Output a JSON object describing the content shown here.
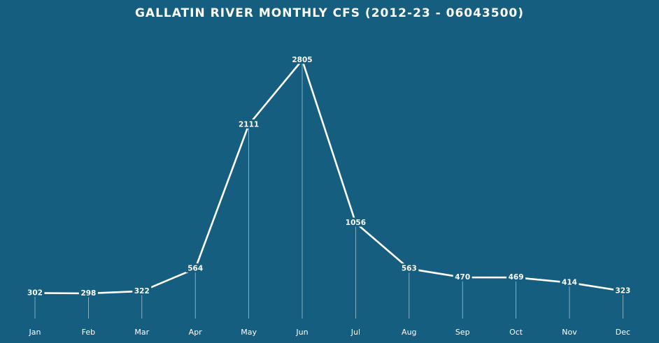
{
  "chart_data": {
    "type": "line",
    "title": "GALLATIN RIVER MONTHLY CFS (2012-23 - 06043500)",
    "categories": [
      "Jan",
      "Feb",
      "Mar",
      "Apr",
      "May",
      "Jun",
      "Jul",
      "Aug",
      "Sep",
      "Oct",
      "Nov",
      "Dec"
    ],
    "values": [
      302,
      298,
      322,
      564,
      2111,
      2805,
      1056,
      563,
      470,
      469,
      414,
      323
    ],
    "xlabel": "",
    "ylabel": "",
    "ylim": [
      0,
      3000
    ],
    "grid": false,
    "legend": "none",
    "colors": {
      "background": "#165e80",
      "line": "#ffffff",
      "text": "#ffffff",
      "drop_line": "#b9d3e0"
    }
  }
}
